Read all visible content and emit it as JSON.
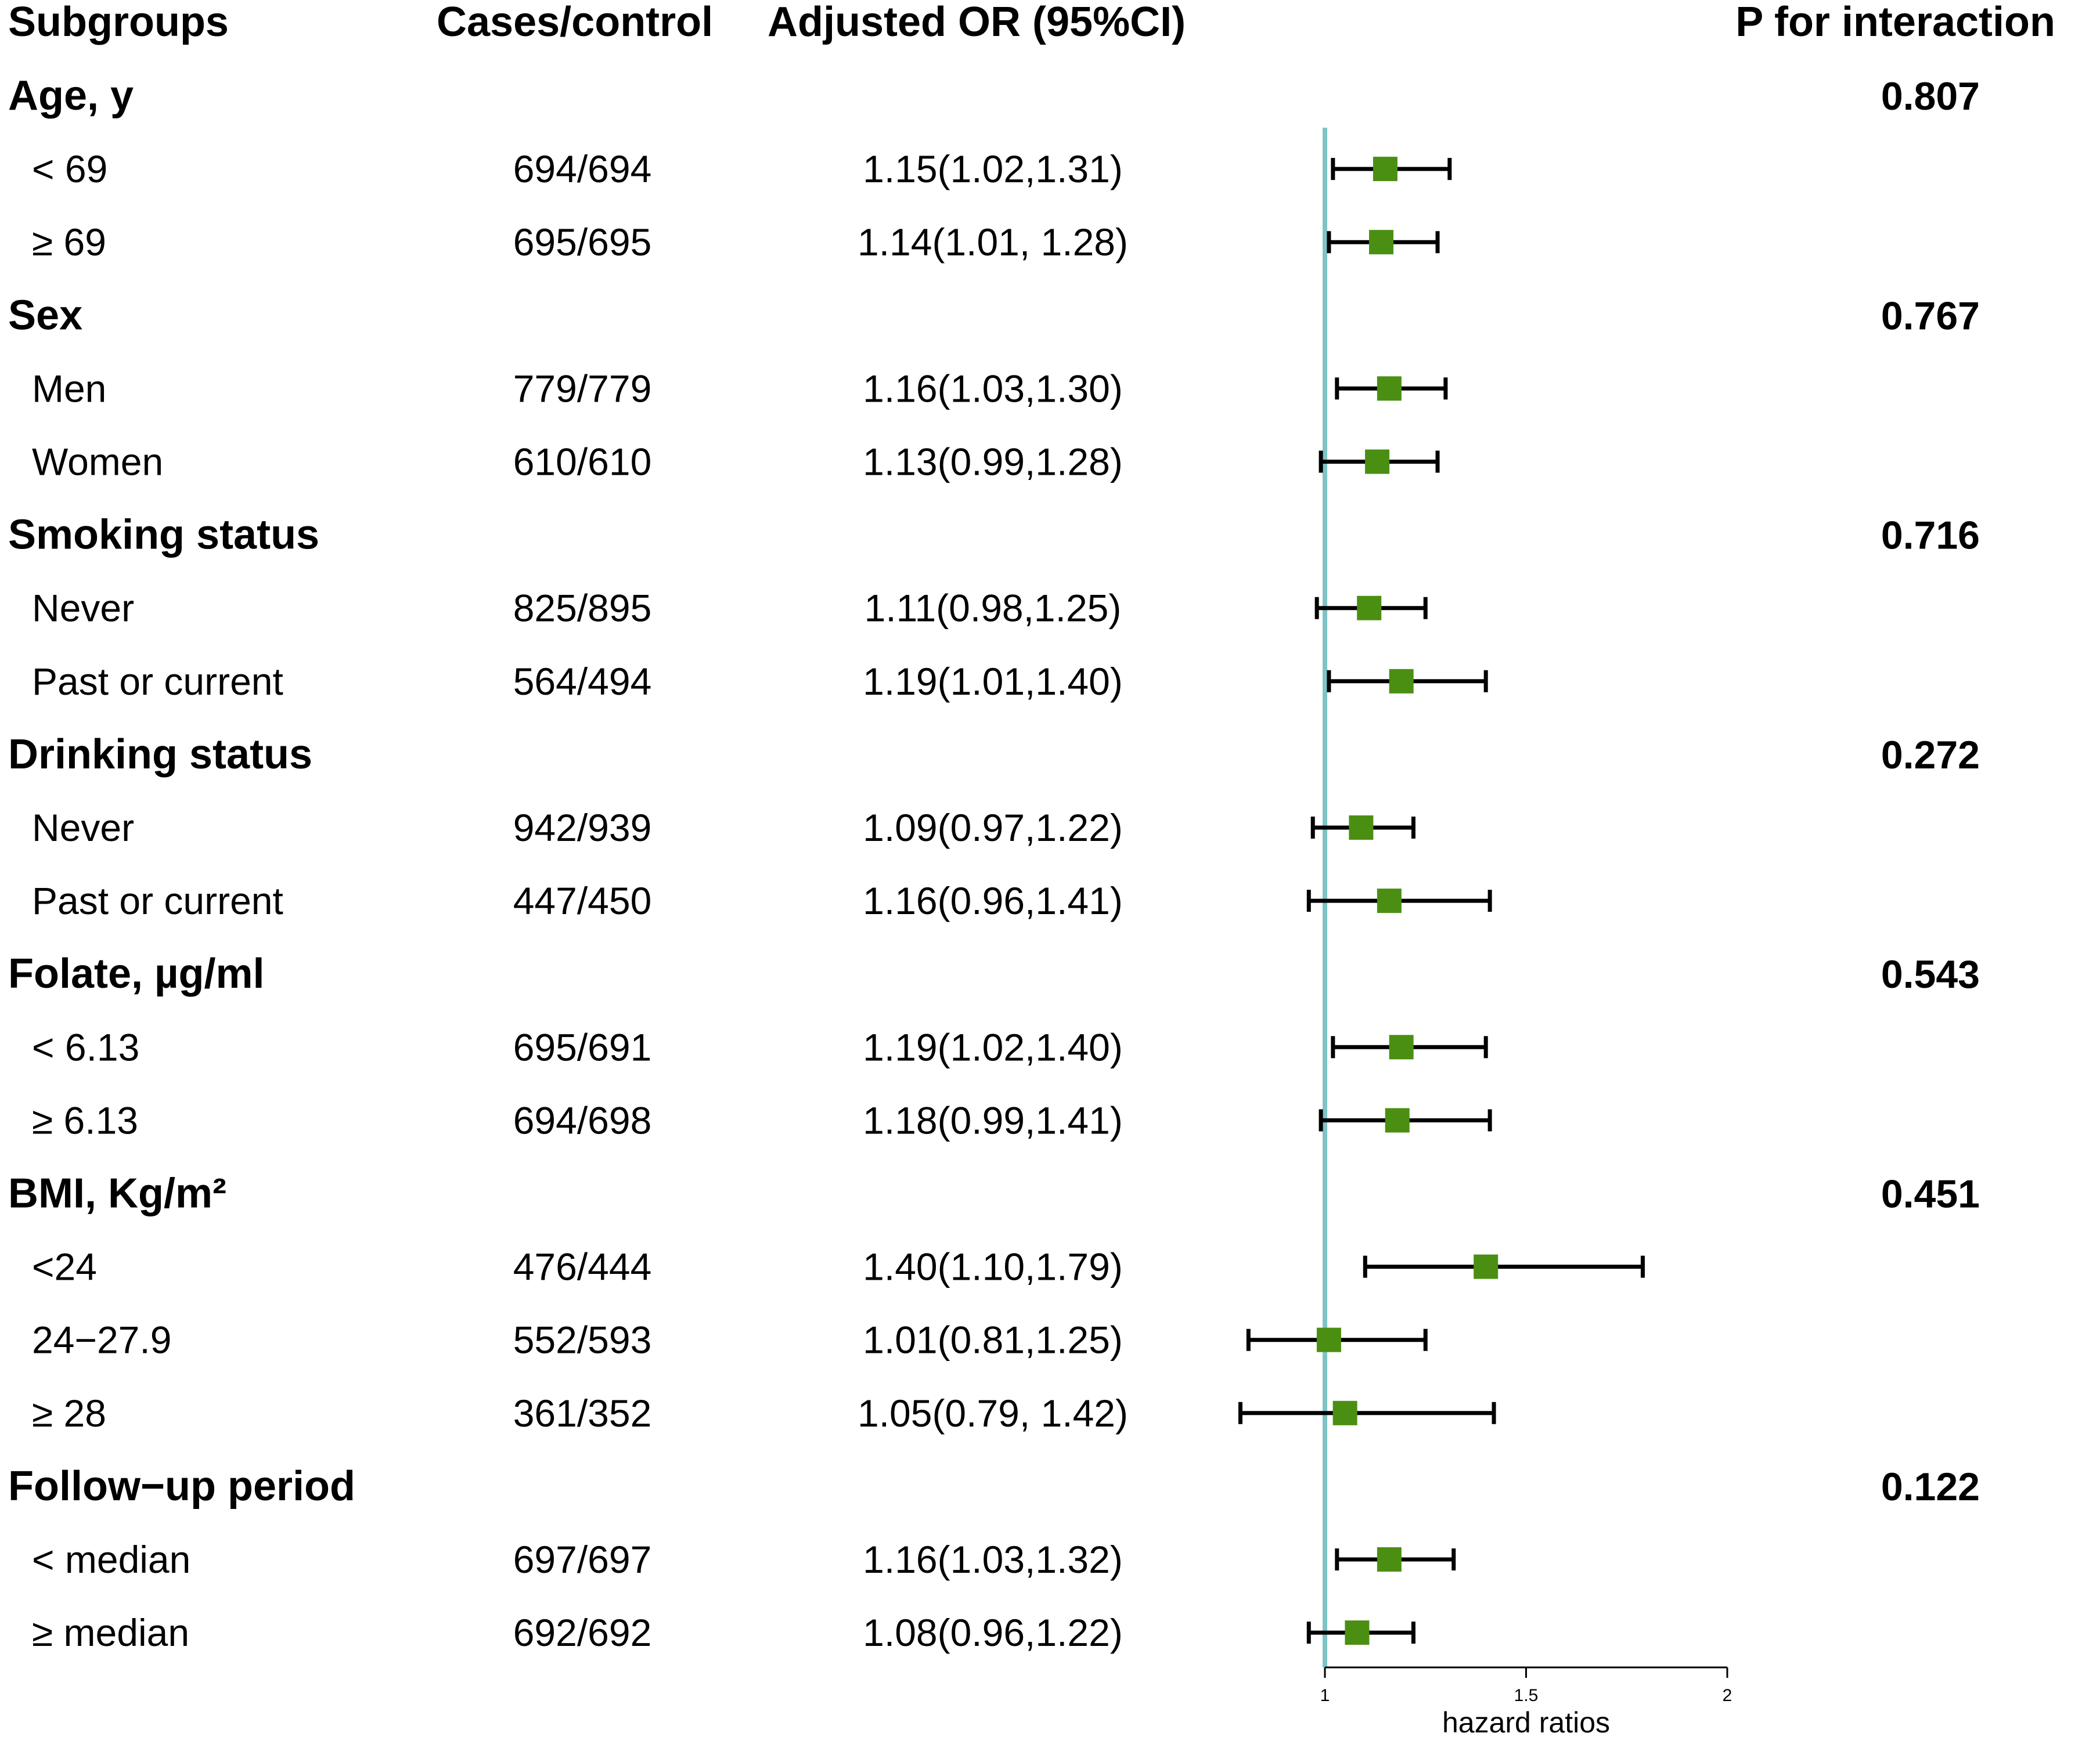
{
  "headers": {
    "subgroups": "Subgroups",
    "cases_control": "Cases/control",
    "or": "Adjusted OR (95%CI)",
    "p_interaction": "P for interaction"
  },
  "chart_data": {
    "type": "forest",
    "xlabel": "hazard ratios",
    "xlim": [
      1,
      2
    ],
    "ticks": [
      {
        "value": 1,
        "label": "1"
      },
      {
        "value": 1.5,
        "label": "1.5"
      },
      {
        "value": 2,
        "label": "2"
      }
    ],
    "reference_line": 1,
    "colors": {
      "marker": "#4a8f12",
      "reference": "#7ec4c6",
      "whisker": "#000000"
    },
    "rows": [
      {
        "kind": "group",
        "label": "Age, y",
        "p": "0.807"
      },
      {
        "kind": "sub",
        "label": "< 69",
        "cases": "694/694",
        "or_text": "1.15(1.02,1.31)",
        "or": 1.15,
        "lo": 1.02,
        "hi": 1.31
      },
      {
        "kind": "sub",
        "label": "≥ 69",
        "cases": "695/695",
        "or_text": "1.14(1.01, 1.28)",
        "or": 1.14,
        "lo": 1.01,
        "hi": 1.28
      },
      {
        "kind": "group",
        "label": "Sex",
        "p": "0.767"
      },
      {
        "kind": "sub",
        "label": "Men",
        "cases": "779/779",
        "or_text": "1.16(1.03,1.30)",
        "or": 1.16,
        "lo": 1.03,
        "hi": 1.3
      },
      {
        "kind": "sub",
        "label": "Women",
        "cases": "610/610",
        "or_text": "1.13(0.99,1.28)",
        "or": 1.13,
        "lo": 0.99,
        "hi": 1.28
      },
      {
        "kind": "group",
        "label": "Smoking status",
        "p": "0.716"
      },
      {
        "kind": "sub",
        "label": "Never",
        "cases": "825/895",
        "or_text": "1.11(0.98,1.25)",
        "or": 1.11,
        "lo": 0.98,
        "hi": 1.25
      },
      {
        "kind": "sub",
        "label": "Past or current",
        "cases": "564/494",
        "or_text": "1.19(1.01,1.40)",
        "or": 1.19,
        "lo": 1.01,
        "hi": 1.4
      },
      {
        "kind": "group",
        "label": "Drinking status",
        "p": "0.272"
      },
      {
        "kind": "sub",
        "label": "Never",
        "cases": "942/939",
        "or_text": "1.09(0.97,1.22)",
        "or": 1.09,
        "lo": 0.97,
        "hi": 1.22
      },
      {
        "kind": "sub",
        "label": "Past or current",
        "cases": "447/450",
        "or_text": "1.16(0.96,1.41)",
        "or": 1.16,
        "lo": 0.96,
        "hi": 1.41
      },
      {
        "kind": "group",
        "label": "Folate, µg/ml",
        "p": "0.543"
      },
      {
        "kind": "sub",
        "label": "< 6.13",
        "cases": "695/691",
        "or_text": "1.19(1.02,1.40)",
        "or": 1.19,
        "lo": 1.02,
        "hi": 1.4
      },
      {
        "kind": "sub",
        "label": "≥ 6.13",
        "cases": "694/698",
        "or_text": "1.18(0.99,1.41)",
        "or": 1.18,
        "lo": 0.99,
        "hi": 1.41
      },
      {
        "kind": "group",
        "label": "BMI, Kg/m²",
        "p": "0.451"
      },
      {
        "kind": "sub",
        "label": "<24",
        "cases": "476/444",
        "or_text": "1.40(1.10,1.79)",
        "or": 1.4,
        "lo": 1.1,
        "hi": 1.79
      },
      {
        "kind": "sub",
        "label": "24−27.9",
        "cases": "552/593",
        "or_text": "1.01(0.81,1.25)",
        "or": 1.01,
        "lo": 0.81,
        "hi": 1.25
      },
      {
        "kind": "sub",
        "label": "≥ 28",
        "cases": "361/352",
        "or_text": "1.05(0.79, 1.42)",
        "or": 1.05,
        "lo": 0.79,
        "hi": 1.42
      },
      {
        "kind": "group",
        "label": "Follow−up period",
        "p": "0.122"
      },
      {
        "kind": "sub",
        "label": "< median",
        "cases": "697/697",
        "or_text": "1.16(1.03,1.32)",
        "or": 1.16,
        "lo": 1.03,
        "hi": 1.32
      },
      {
        "kind": "sub",
        "label": "≥ median",
        "cases": "692/692",
        "or_text": "1.08(0.96,1.22)",
        "or": 1.08,
        "lo": 0.96,
        "hi": 1.22
      }
    ]
  }
}
